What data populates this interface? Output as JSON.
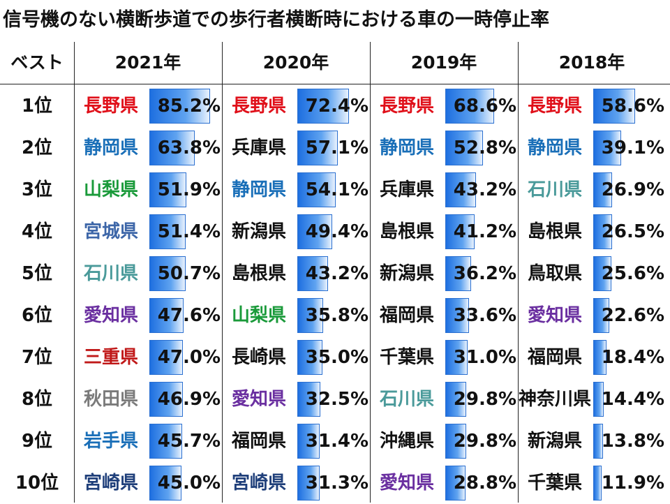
{
  "title": "信号機のない横断歩道での歩行者横断時における車の一時停止率",
  "headers": {
    "rank": "ベスト",
    "years": [
      "2021年",
      "2020年",
      "2019年",
      "2018年"
    ]
  },
  "ranks": [
    "1位",
    "2位",
    "3位",
    "4位",
    "5位",
    "6位",
    "7位",
    "8位",
    "9位",
    "10位"
  ],
  "colors": {
    "red": "#e0101a",
    "blue": "#1a6fb8",
    "green": "#1a9a3a",
    "slate": "#3d66a8",
    "teal": "#4a9a9a",
    "purple": "#6a2fa0",
    "crimson": "#c01818",
    "gray": "#7a7a7a",
    "navy": "#1f3f7a",
    "black": "#111111"
  },
  "chart_data": {
    "type": "table",
    "title": "信号機のない横断歩道での歩行者横断時における車の一時停止率",
    "columns": [
      {
        "year": "2021年",
        "entries": [
          {
            "pref": "長野県",
            "value": 85.2,
            "label": "85.2%",
            "color": "red"
          },
          {
            "pref": "静岡県",
            "value": 63.8,
            "label": "63.8%",
            "color": "blue"
          },
          {
            "pref": "山梨県",
            "value": 51.9,
            "label": "51.9%",
            "color": "green"
          },
          {
            "pref": "宮城県",
            "value": 51.4,
            "label": "51.4%",
            "color": "slate"
          },
          {
            "pref": "石川県",
            "value": 50.7,
            "label": "50.7%",
            "color": "teal"
          },
          {
            "pref": "愛知県",
            "value": 47.6,
            "label": "47.6%",
            "color": "purple"
          },
          {
            "pref": "三重県",
            "value": 47.0,
            "label": "47.0%",
            "color": "crimson"
          },
          {
            "pref": "秋田県",
            "value": 46.9,
            "label": "46.9%",
            "color": "gray"
          },
          {
            "pref": "岩手県",
            "value": 45.7,
            "label": "45.7%",
            "color": "blue"
          },
          {
            "pref": "宮崎県",
            "value": 45.0,
            "label": "45.0%",
            "color": "navy"
          }
        ]
      },
      {
        "year": "2020年",
        "entries": [
          {
            "pref": "長野県",
            "value": 72.4,
            "label": "72.4%",
            "color": "red"
          },
          {
            "pref": "兵庫県",
            "value": 57.1,
            "label": "57.1%",
            "color": "black"
          },
          {
            "pref": "静岡県",
            "value": 54.1,
            "label": "54.1%",
            "color": "blue"
          },
          {
            "pref": "新潟県",
            "value": 49.4,
            "label": "49.4%",
            "color": "black"
          },
          {
            "pref": "島根県",
            "value": 43.2,
            "label": "43.2%",
            "color": "black"
          },
          {
            "pref": "山梨県",
            "value": 35.8,
            "label": "35.8%",
            "color": "green"
          },
          {
            "pref": "長崎県",
            "value": 35.0,
            "label": "35.0%",
            "color": "black"
          },
          {
            "pref": "愛知県",
            "value": 32.5,
            "label": "32.5%",
            "color": "purple"
          },
          {
            "pref": "福岡県",
            "value": 31.4,
            "label": "31.4%",
            "color": "black"
          },
          {
            "pref": "宮崎県",
            "value": 31.3,
            "label": "31.3%",
            "color": "navy"
          }
        ]
      },
      {
        "year": "2019年",
        "entries": [
          {
            "pref": "長野県",
            "value": 68.6,
            "label": "68.6%",
            "color": "red"
          },
          {
            "pref": "静岡県",
            "value": 52.8,
            "label": "52.8%",
            "color": "blue"
          },
          {
            "pref": "兵庫県",
            "value": 43.2,
            "label": "43.2%",
            "color": "black"
          },
          {
            "pref": "島根県",
            "value": 41.2,
            "label": "41.2%",
            "color": "black"
          },
          {
            "pref": "新潟県",
            "value": 36.2,
            "label": "36.2%",
            "color": "black"
          },
          {
            "pref": "福岡県",
            "value": 33.6,
            "label": "33.6%",
            "color": "black"
          },
          {
            "pref": "千葉県",
            "value": 31.0,
            "label": "31.0%",
            "color": "black"
          },
          {
            "pref": "石川県",
            "value": 29.8,
            "label": "29.8%",
            "color": "teal"
          },
          {
            "pref": "沖縄県",
            "value": 29.8,
            "label": "29.8%",
            "color": "black"
          },
          {
            "pref": "愛知県",
            "value": 28.8,
            "label": "28.8%",
            "color": "purple"
          }
        ]
      },
      {
        "year": "2018年",
        "entries": [
          {
            "pref": "長野県",
            "value": 58.6,
            "label": "58.6%",
            "color": "red"
          },
          {
            "pref": "静岡県",
            "value": 39.1,
            "label": "39.1%",
            "color": "blue"
          },
          {
            "pref": "石川県",
            "value": 26.9,
            "label": "26.9%",
            "color": "teal"
          },
          {
            "pref": "島根県",
            "value": 26.5,
            "label": "26.5%",
            "color": "black"
          },
          {
            "pref": "鳥取県",
            "value": 25.6,
            "label": "25.6%",
            "color": "black"
          },
          {
            "pref": "愛知県",
            "value": 22.6,
            "label": "22.6%",
            "color": "purple"
          },
          {
            "pref": "福岡県",
            "value": 18.4,
            "label": "18.4%",
            "color": "black"
          },
          {
            "pref": "神奈川県",
            "value": 14.4,
            "label": "14.4%",
            "color": "black"
          },
          {
            "pref": "新潟県",
            "value": 13.8,
            "label": "13.8%",
            "color": "black"
          },
          {
            "pref": "千葉県",
            "value": 11.9,
            "label": "11.9%",
            "color": "black"
          }
        ]
      }
    ]
  }
}
